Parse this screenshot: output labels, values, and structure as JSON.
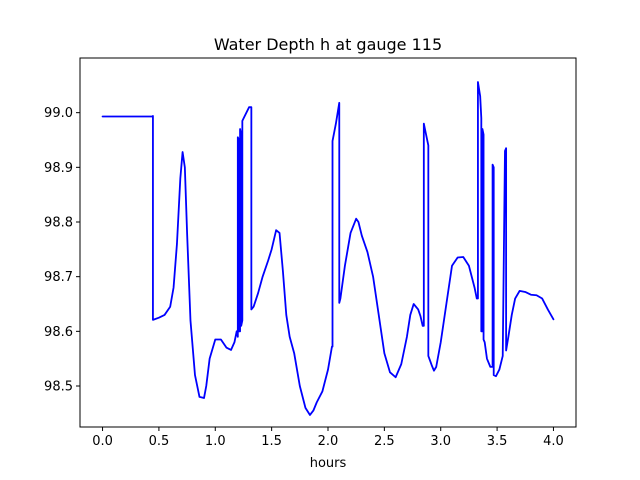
{
  "chart_data": {
    "type": "line",
    "title": "Water Depth h at gauge 115",
    "xlabel": "hours",
    "ylabel": "",
    "xlim": [
      -0.2,
      4.2
    ],
    "ylim": [
      98.425,
      99.1
    ],
    "xticks": [
      0.0,
      0.5,
      1.0,
      1.5,
      2.0,
      2.5,
      3.0,
      3.5,
      4.0
    ],
    "xtick_labels": [
      "0.0",
      "0.5",
      "1.0",
      "1.5",
      "2.0",
      "2.5",
      "3.0",
      "3.5",
      "4.0"
    ],
    "yticks": [
      98.5,
      98.6,
      98.7,
      98.8,
      98.9,
      99.0
    ],
    "ytick_labels": [
      "98.5",
      "98.6",
      "98.7",
      "98.8",
      "98.9",
      "99.0"
    ],
    "grid": false,
    "series": [
      {
        "color": "#0000ff",
        "x": [
          0.0,
          0.2,
          0.44,
          0.447,
          0.447,
          0.5,
          0.55,
          0.6,
          0.63,
          0.66,
          0.69,
          0.71,
          0.73,
          0.75,
          0.78,
          0.82,
          0.86,
          0.9,
          0.92,
          0.95,
          1.0,
          1.05,
          1.1,
          1.14,
          1.17,
          1.19,
          1.2,
          1.2,
          1.21,
          1.21,
          1.22,
          1.22,
          1.23,
          1.23,
          1.24,
          1.24,
          1.3,
          1.32,
          1.32,
          1.34,
          1.38,
          1.42,
          1.47,
          1.5,
          1.54,
          1.57,
          1.6,
          1.63,
          1.66,
          1.7,
          1.75,
          1.8,
          1.84,
          1.87,
          1.9,
          1.95,
          2.0,
          2.035,
          2.04,
          2.04,
          2.07,
          2.1,
          2.1,
          2.11,
          2.15,
          2.2,
          2.25,
          2.27,
          2.3,
          2.35,
          2.4,
          2.45,
          2.5,
          2.55,
          2.6,
          2.65,
          2.7,
          2.73,
          2.76,
          2.8,
          2.82,
          2.84,
          2.85,
          2.85,
          2.87,
          2.89,
          2.89,
          2.92,
          2.94,
          2.96,
          3.0,
          3.05,
          3.1,
          3.15,
          3.2,
          3.25,
          3.3,
          3.32,
          3.33,
          3.33,
          3.35,
          3.36,
          3.36,
          3.37,
          3.37,
          3.38,
          3.38,
          3.39,
          3.41,
          3.44,
          3.46,
          3.46,
          3.47,
          3.47,
          3.49,
          3.52,
          3.55,
          3.57,
          3.58,
          3.58,
          3.6,
          3.63,
          3.66,
          3.7,
          3.75,
          3.8,
          3.85,
          3.9,
          3.95,
          4.0
        ],
        "y": [
          98.993,
          98.993,
          98.993,
          98.994,
          98.621,
          98.625,
          98.63,
          98.645,
          98.68,
          98.76,
          98.88,
          98.928,
          98.9,
          98.78,
          98.62,
          98.52,
          98.48,
          98.478,
          98.5,
          98.55,
          98.585,
          98.585,
          98.57,
          98.566,
          98.58,
          98.6,
          98.59,
          98.955,
          98.95,
          98.6,
          98.6,
          98.97,
          98.96,
          98.61,
          98.62,
          98.985,
          99.01,
          99.01,
          98.64,
          98.645,
          98.67,
          98.7,
          98.73,
          98.75,
          98.785,
          98.78,
          98.71,
          98.63,
          98.59,
          98.56,
          98.5,
          98.46,
          98.447,
          98.455,
          98.47,
          98.49,
          98.53,
          98.572,
          98.572,
          98.948,
          98.98,
          99.018,
          98.652,
          98.66,
          98.72,
          98.78,
          98.806,
          98.8,
          98.775,
          98.745,
          98.7,
          98.63,
          98.56,
          98.525,
          98.516,
          98.54,
          98.59,
          98.63,
          98.65,
          98.64,
          98.628,
          98.61,
          98.61,
          98.98,
          98.96,
          98.94,
          98.555,
          98.538,
          98.528,
          98.535,
          98.58,
          98.65,
          98.72,
          98.735,
          98.736,
          98.72,
          98.68,
          98.66,
          98.66,
          99.056,
          99.03,
          98.99,
          98.6,
          98.6,
          98.97,
          98.96,
          98.585,
          98.58,
          98.55,
          98.535,
          98.535,
          98.905,
          98.9,
          98.52,
          98.518,
          98.53,
          98.555,
          98.93,
          98.935,
          98.565,
          98.59,
          98.63,
          98.66,
          98.674,
          98.672,
          98.667,
          98.666,
          98.66,
          98.64,
          98.622
        ]
      }
    ]
  }
}
